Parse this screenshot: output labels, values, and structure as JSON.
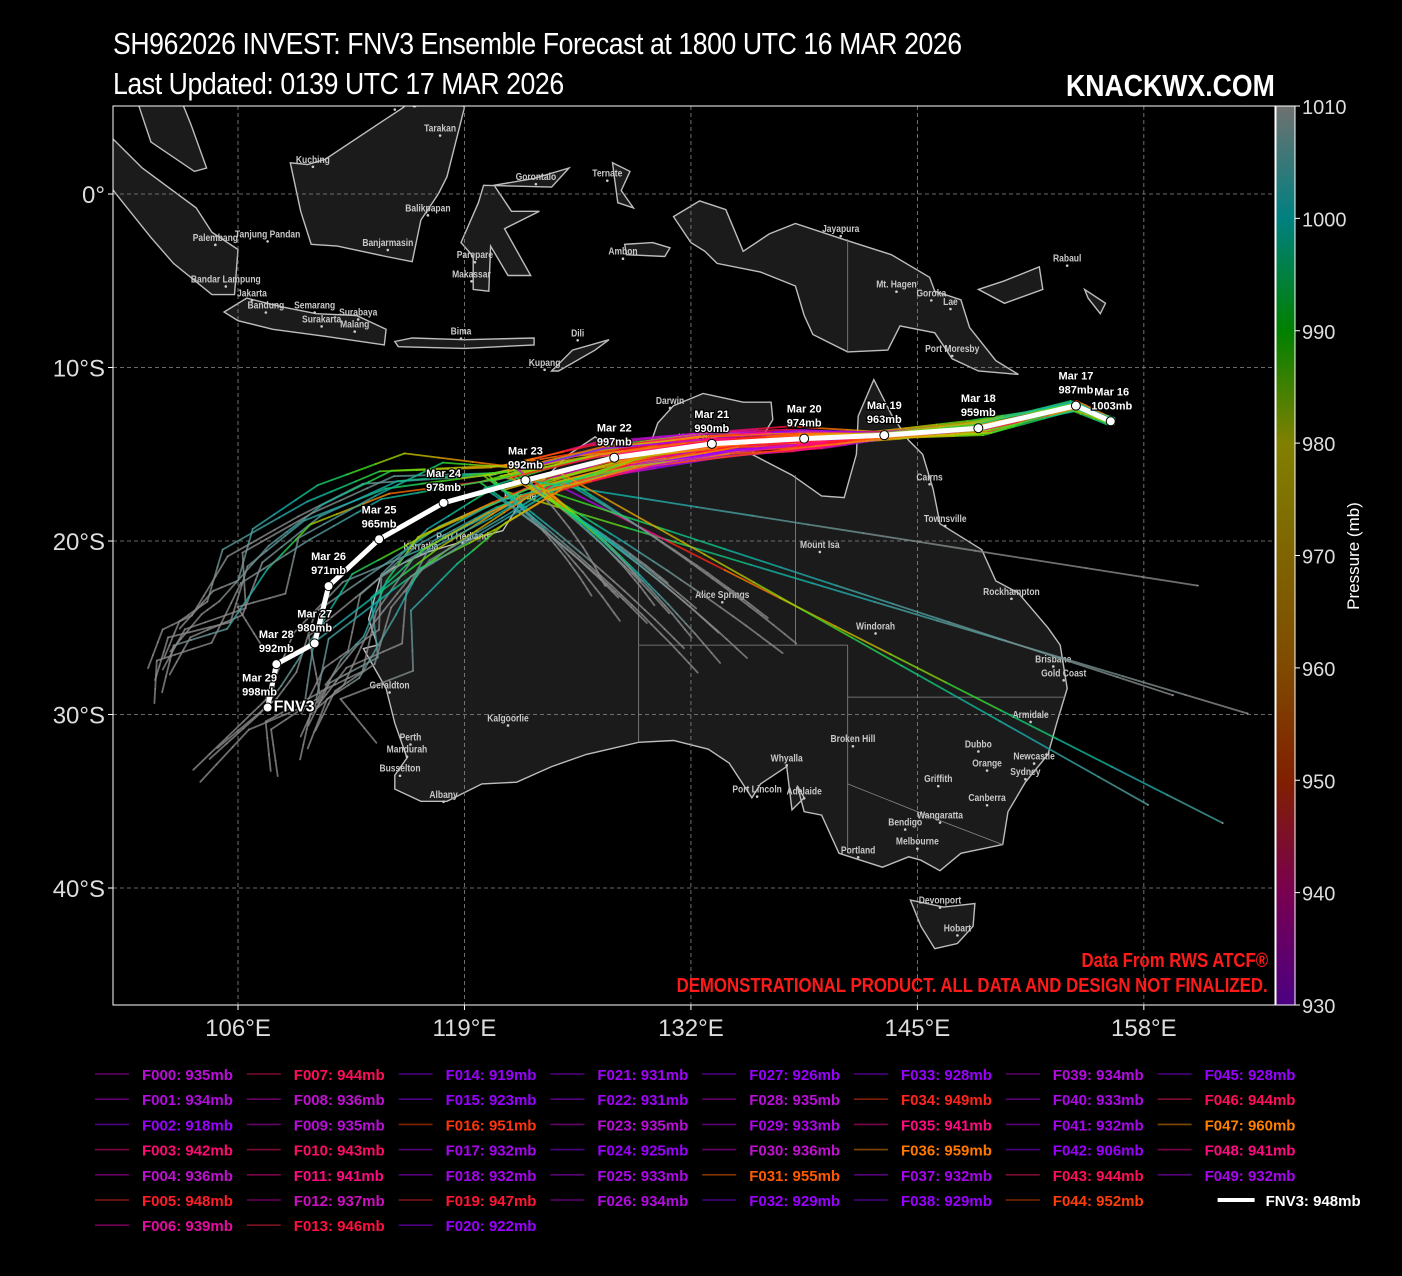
{
  "header": {
    "title": "SH962026 INVEST: FNV3 Ensemble Forecast at 1800 UTC 16 MAR 2026",
    "updated": "Last Updated: 0139 UTC 17 MAR 2026",
    "site": "KNACKWX.COM"
  },
  "footer_notes": {
    "source": "Data From RWS ATCF®",
    "disclaimer": "DEMONSTRATIONAL PRODUCT. ALL DATA AND DESIGN NOT FINALIZED."
  },
  "map": {
    "lon_ticks": [
      {
        "value": 106,
        "label": "106°E"
      },
      {
        "value": 119,
        "label": "119°E"
      },
      {
        "value": 132,
        "label": "132°E"
      },
      {
        "value": 145,
        "label": "145°E"
      },
      {
        "value": 158,
        "label": "158°E"
      }
    ],
    "lat_ticks": [
      {
        "value": 0,
        "label": "0°"
      },
      {
        "value": -10,
        "label": "10°S"
      },
      {
        "value": -20,
        "label": "20°S"
      },
      {
        "value": -30,
        "label": "30°S"
      },
      {
        "value": -40,
        "label": "40°S"
      }
    ],
    "grid": true,
    "colors": {
      "land": "#1b1b1b",
      "coast": "#bdbdbd",
      "grid": "#8a8a8a",
      "mean_track": "#ffffff",
      "disclaimer": "#ff1a1a"
    }
  },
  "colorbar": {
    "label": "Pressure (mb)",
    "range": [
      930,
      1010
    ],
    "ticks": [
      "930",
      "940",
      "950",
      "960",
      "970",
      "980",
      "990",
      "1000",
      "1010"
    ],
    "stops": [
      {
        "p": 930,
        "color": "#4b0082"
      },
      {
        "p": 940,
        "color": "#780050"
      },
      {
        "p": 950,
        "color": "#802000"
      },
      {
        "p": 960,
        "color": "#7f4a00"
      },
      {
        "p": 970,
        "color": "#7f6400"
      },
      {
        "p": 980,
        "color": "#808000"
      },
      {
        "p": 990,
        "color": "#008000"
      },
      {
        "p": 1000,
        "color": "#008080"
      },
      {
        "p": 1010,
        "color": "#707070"
      }
    ]
  },
  "fnv3_track": {
    "name": "FNV3",
    "points": [
      {
        "date": "Mar 16",
        "pressure": "1003mb",
        "lon": 156.1,
        "lat": -13.1
      },
      {
        "date": "Mar 17",
        "pressure": "987mb",
        "lon": 154.1,
        "lat": -12.2
      },
      {
        "date": "Mar 18",
        "pressure": "959mb",
        "lon": 148.5,
        "lat": -13.5
      },
      {
        "date": "Mar 19",
        "pressure": "963mb",
        "lon": 143.1,
        "lat": -13.9
      },
      {
        "date": "Mar 20",
        "pressure": "974mb",
        "lon": 138.5,
        "lat": -14.1
      },
      {
        "date": "Mar 21",
        "pressure": "990mb",
        "lon": 133.2,
        "lat": -14.4
      },
      {
        "date": "Mar 22",
        "pressure": "997mb",
        "lon": 127.6,
        "lat": -15.2
      },
      {
        "date": "Mar 23",
        "pressure": "992mb",
        "lon": 122.5,
        "lat": -16.5
      },
      {
        "date": "Mar 24",
        "pressure": "978mb",
        "lon": 117.8,
        "lat": -17.8
      },
      {
        "date": "Mar 25",
        "pressure": "965mb",
        "lon": 114.1,
        "lat": -19.9
      },
      {
        "date": "Mar 26",
        "pressure": "971mb",
        "lon": 111.2,
        "lat": -22.6
      },
      {
        "date": "Mar 27",
        "pressure": "980mb",
        "lon": 110.4,
        "lat": -25.9
      },
      {
        "date": "Mar 28",
        "pressure": "992mb",
        "lon": 108.2,
        "lat": -27.1
      },
      {
        "date": "Mar 29",
        "pressure": "998mb",
        "lon": 107.7,
        "lat": -29.6
      }
    ]
  },
  "cities": [
    {
      "name": "Bandar Seri Begawan",
      "lon": 115.0,
      "lat": 5.1
    },
    {
      "name": "Tarakan",
      "lon": 117.6,
      "lat": 3.6
    },
    {
      "name": "Kuching",
      "lon": 110.3,
      "lat": 1.8
    },
    {
      "name": "Gorontalo",
      "lon": 123.1,
      "lat": 0.8
    },
    {
      "name": "Ternate",
      "lon": 127.2,
      "lat": 1.0
    },
    {
      "name": "Balikpapan",
      "lon": 116.9,
      "lat": -1.0
    },
    {
      "name": "Palembang",
      "lon": 104.7,
      "lat": -2.7
    },
    {
      "name": "Tanjung Pandan",
      "lon": 107.7,
      "lat": -2.5
    },
    {
      "name": "Banjarmasin",
      "lon": 114.6,
      "lat": -3.0
    },
    {
      "name": "Parepare",
      "lon": 119.6,
      "lat": -3.7
    },
    {
      "name": "Ambon",
      "lon": 128.1,
      "lat": -3.5
    },
    {
      "name": "Jayapura",
      "lon": 140.6,
      "lat": -2.2
    },
    {
      "name": "Makassar",
      "lon": 119.4,
      "lat": -4.8
    },
    {
      "name": "Bandar Lampung",
      "lon": 105.3,
      "lat": -5.1
    },
    {
      "name": "Jakarta",
      "lon": 106.8,
      "lat": -5.9
    },
    {
      "name": "Bandung",
      "lon": 107.6,
      "lat": -6.6
    },
    {
      "name": "Semarang",
      "lon": 110.4,
      "lat": -6.6
    },
    {
      "name": "Surabaya",
      "lon": 112.9,
      "lat": -7.0
    },
    {
      "name": "Surakarta",
      "lon": 110.8,
      "lat": -7.4
    },
    {
      "name": "Malang",
      "lon": 112.7,
      "lat": -7.7
    },
    {
      "name": "Bima",
      "lon": 118.8,
      "lat": -8.1
    },
    {
      "name": "Dili",
      "lon": 125.5,
      "lat": -8.2
    },
    {
      "name": "Kupang",
      "lon": 123.6,
      "lat": -9.9
    },
    {
      "name": "Mt. Hagen",
      "lon": 143.8,
      "lat": -5.4
    },
    {
      "name": "Goroka",
      "lon": 145.8,
      "lat": -5.9
    },
    {
      "name": "Lae",
      "lon": 146.9,
      "lat": -6.4
    },
    {
      "name": "Port Moresby",
      "lon": 147.0,
      "lat": -9.1
    },
    {
      "name": "Rabaul",
      "lon": 153.6,
      "lat": -3.9
    },
    {
      "name": "Darwin",
      "lon": 130.8,
      "lat": -12.1
    },
    {
      "name": "Katherine",
      "lon": 132.4,
      "lat": -14.2
    },
    {
      "name": "Cairns",
      "lon": 145.7,
      "lat": -16.5
    },
    {
      "name": "Townsville",
      "lon": 146.6,
      "lat": -18.9
    },
    {
      "name": "Broome",
      "lon": 122.2,
      "lat": -17.6
    },
    {
      "name": "Port Hedland",
      "lon": 118.9,
      "lat": -19.9
    },
    {
      "name": "Karratha",
      "lon": 116.5,
      "lat": -20.5
    },
    {
      "name": "Mount Isa",
      "lon": 139.4,
      "lat": -20.4
    },
    {
      "name": "Alice Springs",
      "lon": 133.8,
      "lat": -23.3
    },
    {
      "name": "Rockhampton",
      "lon": 150.4,
      "lat": -23.1
    },
    {
      "name": "Windorah",
      "lon": 142.6,
      "lat": -25.1
    },
    {
      "name": "Brisbane",
      "lon": 152.8,
      "lat": -27.0
    },
    {
      "name": "Gold Coast",
      "lon": 153.4,
      "lat": -27.8
    },
    {
      "name": "Geraldton",
      "lon": 114.7,
      "lat": -28.5
    },
    {
      "name": "Kalgoorlie",
      "lon": 121.5,
      "lat": -30.4
    },
    {
      "name": "Armidale",
      "lon": 151.5,
      "lat": -30.2
    },
    {
      "name": "Perth",
      "lon": 115.9,
      "lat": -31.5
    },
    {
      "name": "Mandurah",
      "lon": 115.7,
      "lat": -32.2
    },
    {
      "name": "Broken Hill",
      "lon": 141.3,
      "lat": -31.6
    },
    {
      "name": "Dubbo",
      "lon": 148.5,
      "lat": -31.9
    },
    {
      "name": "Newcastle",
      "lon": 151.7,
      "lat": -32.6
    },
    {
      "name": "Whyalla",
      "lon": 137.5,
      "lat": -32.7
    },
    {
      "name": "Busselton",
      "lon": 115.3,
      "lat": -33.3
    },
    {
      "name": "Orange",
      "lon": 149.0,
      "lat": -33.0
    },
    {
      "name": "Sydney",
      "lon": 151.2,
      "lat": -33.5
    },
    {
      "name": "Griffith",
      "lon": 146.2,
      "lat": -33.9
    },
    {
      "name": "Port Lincoln",
      "lon": 135.8,
      "lat": -34.5
    },
    {
      "name": "Adelaide",
      "lon": 138.5,
      "lat": -34.6
    },
    {
      "name": "Albany",
      "lon": 117.8,
      "lat": -34.8
    },
    {
      "name": "Canberra",
      "lon": 149.0,
      "lat": -35.0
    },
    {
      "name": "Wangaratta",
      "lon": 146.3,
      "lat": -36.0
    },
    {
      "name": "Bendigo",
      "lon": 144.3,
      "lat": -36.4
    },
    {
      "name": "Melbourne",
      "lon": 145.0,
      "lat": -37.5
    },
    {
      "name": "Portland",
      "lon": 141.6,
      "lat": -38.0
    },
    {
      "name": "Devonport",
      "lon": 146.3,
      "lat": -40.9
    },
    {
      "name": "Hobart",
      "lon": 147.3,
      "lat": -42.5
    }
  ],
  "legend": [
    {
      "label": "F000: 935mb",
      "min_pressure": 935
    },
    {
      "label": "F001: 934mb",
      "min_pressure": 934
    },
    {
      "label": "F002: 918mb",
      "min_pressure": 918
    },
    {
      "label": "F003: 942mb",
      "min_pressure": 942
    },
    {
      "label": "F004: 936mb",
      "min_pressure": 936
    },
    {
      "label": "F005: 948mb",
      "min_pressure": 948
    },
    {
      "label": "F006: 939mb",
      "min_pressure": 939
    },
    {
      "label": "F007: 944mb",
      "min_pressure": 944
    },
    {
      "label": "F008: 936mb",
      "min_pressure": 936
    },
    {
      "label": "F009: 935mb",
      "min_pressure": 935
    },
    {
      "label": "F010: 943mb",
      "min_pressure": 943
    },
    {
      "label": "F011: 941mb",
      "min_pressure": 941
    },
    {
      "label": "F012: 937mb",
      "min_pressure": 937
    },
    {
      "label": "F013: 946mb",
      "min_pressure": 946
    },
    {
      "label": "F014: 919mb",
      "min_pressure": 919
    },
    {
      "label": "F015: 923mb",
      "min_pressure": 923
    },
    {
      "label": "F016: 951mb",
      "min_pressure": 951
    },
    {
      "label": "F017: 932mb",
      "min_pressure": 932
    },
    {
      "label": "F018: 932mb",
      "min_pressure": 932
    },
    {
      "label": "F019: 947mb",
      "min_pressure": 947
    },
    {
      "label": "F020: 922mb",
      "min_pressure": 922
    },
    {
      "label": "F021: 931mb",
      "min_pressure": 931
    },
    {
      "label": "F022: 931mb",
      "min_pressure": 931
    },
    {
      "label": "F023: 935mb",
      "min_pressure": 935
    },
    {
      "label": "F024: 925mb",
      "min_pressure": 925
    },
    {
      "label": "F025: 933mb",
      "min_pressure": 933
    },
    {
      "label": "F026: 934mb",
      "min_pressure": 934
    },
    {
      "label": "F027: 926mb",
      "min_pressure": 926
    },
    {
      "label": "F028: 935mb",
      "min_pressure": 935
    },
    {
      "label": "F029: 933mb",
      "min_pressure": 933
    },
    {
      "label": "F030: 936mb",
      "min_pressure": 936
    },
    {
      "label": "F031: 955mb",
      "min_pressure": 955
    },
    {
      "label": "F032: 929mb",
      "min_pressure": 929
    },
    {
      "label": "F033: 928mb",
      "min_pressure": 928
    },
    {
      "label": "F034: 949mb",
      "min_pressure": 949
    },
    {
      "label": "F035: 941mb",
      "min_pressure": 941
    },
    {
      "label": "F036: 959mb",
      "min_pressure": 959
    },
    {
      "label": "F037: 932mb",
      "min_pressure": 932
    },
    {
      "label": "F038: 929mb",
      "min_pressure": 929
    },
    {
      "label": "F039: 934mb",
      "min_pressure": 934
    },
    {
      "label": "F040: 933mb",
      "min_pressure": 933
    },
    {
      "label": "F041: 932mb",
      "min_pressure": 932
    },
    {
      "label": "F042: 906mb",
      "min_pressure": 906
    },
    {
      "label": "F043: 944mb",
      "min_pressure": 944
    },
    {
      "label": "F044: 952mb",
      "min_pressure": 952
    },
    {
      "label": "F045: 928mb",
      "min_pressure": 928
    },
    {
      "label": "F046: 944mb",
      "min_pressure": 944
    },
    {
      "label": "F047: 960mb",
      "min_pressure": 960
    },
    {
      "label": "F048: 941mb",
      "min_pressure": 941
    },
    {
      "label": "F049: 932mb",
      "min_pressure": 932
    },
    {
      "label": "FNV3: 948mb",
      "min_pressure": 948,
      "mean": true
    }
  ]
}
